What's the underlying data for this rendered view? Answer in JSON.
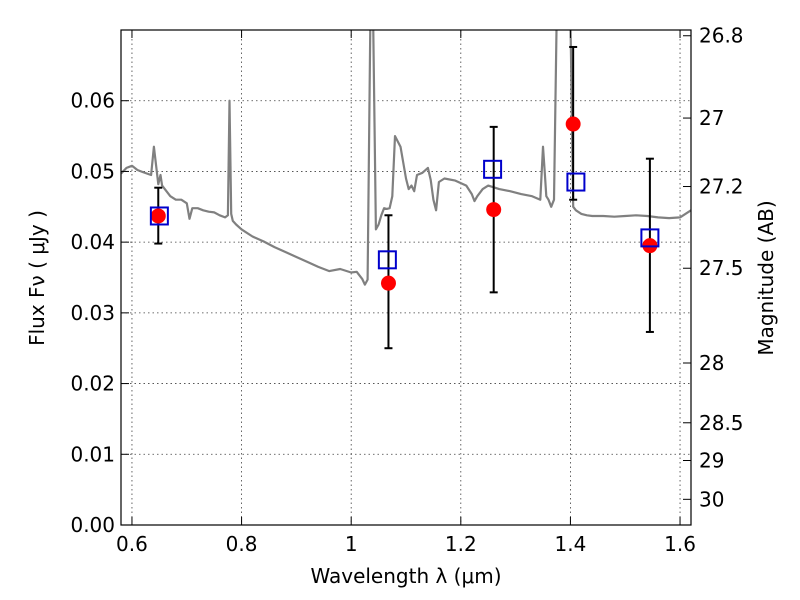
{
  "chart_data": {
    "type": "scatter",
    "title": "",
    "xlabel": "Wavelength  λ (μm)",
    "ylabel": "Flux  Fν  ( μJy )",
    "y2label": "Magnitude (AB)",
    "xlim": [
      0.58,
      1.62
    ],
    "ylim": [
      0.0,
      0.07
    ],
    "grid": true,
    "x_ticks": [
      0.6,
      0.8,
      1.0,
      1.2,
      1.4,
      1.6
    ],
    "x_tick_labels": [
      "0.6",
      "0.8",
      "1",
      "1.2",
      "1.4",
      "1.6"
    ],
    "y_ticks": [
      0.0,
      0.01,
      0.02,
      0.03,
      0.04,
      0.05,
      0.06
    ],
    "y_tick_labels": [
      "0.00",
      "0.01",
      "0.02",
      "0.03",
      "0.04",
      "0.05",
      "0.06"
    ],
    "y2_ticks": [
      {
        "mag": 26.8,
        "label": "26.8"
      },
      {
        "mag": 27.0,
        "label": "27"
      },
      {
        "mag": 27.2,
        "label": "27.2"
      },
      {
        "mag": 27.5,
        "label": "27.5"
      },
      {
        "mag": 28.0,
        "label": "28"
      },
      {
        "mag": 28.5,
        "label": "28.5"
      },
      {
        "mag": 29.0,
        "label": "29"
      },
      {
        "mag": 30.0,
        "label": "30"
      }
    ],
    "series": [
      {
        "kind": "line",
        "color": "#808080",
        "x": [
          0.58,
          0.59,
          0.6,
          0.61,
          0.62,
          0.635,
          0.64,
          0.648,
          0.652,
          0.655,
          0.66,
          0.67,
          0.68,
          0.69,
          0.7,
          0.705,
          0.71,
          0.72,
          0.73,
          0.74,
          0.75,
          0.76,
          0.77,
          0.775,
          0.778,
          0.781,
          0.784,
          0.79,
          0.8,
          0.82,
          0.84,
          0.86,
          0.88,
          0.9,
          0.92,
          0.94,
          0.96,
          0.98,
          1.0,
          1.01,
          1.02,
          1.025,
          1.03,
          1.035,
          1.04,
          1.045,
          1.05,
          1.055,
          1.06,
          1.065,
          1.07,
          1.075,
          1.08,
          1.09,
          1.1,
          1.105,
          1.11,
          1.115,
          1.12,
          1.13,
          1.14,
          1.145,
          1.15,
          1.155,
          1.16,
          1.17,
          1.19,
          1.21,
          1.22,
          1.225,
          1.23,
          1.24,
          1.25,
          1.27,
          1.29,
          1.31,
          1.33,
          1.345,
          1.35,
          1.353,
          1.356,
          1.36,
          1.365,
          1.37,
          1.375,
          1.38,
          1.39,
          1.4,
          1.405,
          1.41,
          1.42,
          1.43,
          1.44,
          1.46,
          1.48,
          1.5,
          1.52,
          1.54,
          1.56,
          1.58,
          1.6,
          1.62
        ],
        "y": [
          0.0497,
          0.0505,
          0.0508,
          0.0502,
          0.0499,
          0.0495,
          0.0535,
          0.0482,
          0.0495,
          0.048,
          0.0475,
          0.0465,
          0.046,
          0.046,
          0.0455,
          0.0433,
          0.0448,
          0.0448,
          0.0445,
          0.0443,
          0.0442,
          0.0438,
          0.0435,
          0.0438,
          0.06,
          0.044,
          0.043,
          0.0425,
          0.0418,
          0.0408,
          0.0401,
          0.0393,
          0.0386,
          0.0379,
          0.0372,
          0.0365,
          0.0359,
          0.0362,
          0.0357,
          0.0358,
          0.0348,
          0.034,
          0.0347,
          0.072,
          0.072,
          0.0418,
          0.0425,
          0.0438,
          0.0448,
          0.0447,
          0.0448,
          0.0465,
          0.055,
          0.0535,
          0.049,
          0.0475,
          0.048,
          0.0472,
          0.0495,
          0.0498,
          0.0505,
          0.0488,
          0.046,
          0.0445,
          0.0485,
          0.049,
          0.0487,
          0.048,
          0.0468,
          0.0458,
          0.0465,
          0.0475,
          0.048,
          0.0475,
          0.0472,
          0.0468,
          0.0465,
          0.046,
          0.0535,
          0.05,
          0.0465,
          0.046,
          0.045,
          0.046,
          0.072,
          0.072,
          0.072,
          0.072,
          0.045,
          0.0445,
          0.044,
          0.0438,
          0.0437,
          0.0437,
          0.0436,
          0.0437,
          0.0438,
          0.0437,
          0.0435,
          0.0434,
          0.0435,
          0.0445
        ]
      },
      {
        "kind": "errorbar",
        "color": "#000000",
        "points": [
          {
            "x": 0.648,
            "y": 0.0437,
            "low": 0.0398,
            "high": 0.0477
          },
          {
            "x": 1.068,
            "y": 0.0342,
            "low": 0.025,
            "high": 0.0438
          },
          {
            "x": 1.26,
            "y": 0.0446,
            "low": 0.0329,
            "high": 0.0563
          },
          {
            "x": 1.405,
            "y": 0.0567,
            "low": 0.046,
            "high": 0.0676
          },
          {
            "x": 1.545,
            "y": 0.0395,
            "low": 0.0273,
            "high": 0.0518
          }
        ]
      },
      {
        "kind": "marker-circle",
        "color": "#ff0000",
        "x": [
          0.648,
          1.068,
          1.26,
          1.405,
          1.545
        ],
        "y": [
          0.0437,
          0.0342,
          0.0446,
          0.0567,
          0.0395
        ]
      },
      {
        "kind": "marker-square",
        "color": "#0000cc",
        "x": [
          0.65,
          1.066,
          1.258,
          1.41,
          1.545
        ],
        "y": [
          0.0437,
          0.0375,
          0.0503,
          0.0485,
          0.0406
        ]
      }
    ]
  }
}
